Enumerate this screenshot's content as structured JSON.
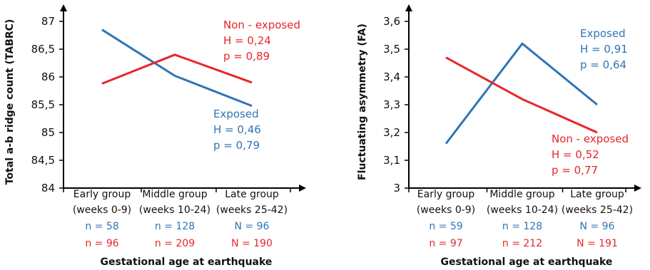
{
  "colors": {
    "exposed": "#2F75B5",
    "non_exposed": "#E8262A",
    "axis": "#000000"
  },
  "chart_data": [
    {
      "type": "line",
      "ylabel": "Total a-b ridge count (TABRC)",
      "xlabel": "Gestational age at earthquake",
      "ylim": [
        84,
        87
      ],
      "yticks": [
        "84",
        "84,5",
        "85",
        "85,5",
        "86",
        "86,5",
        "87"
      ],
      "categories": [
        [
          "Early group",
          "(weeks 0-9)"
        ],
        [
          "Middle group",
          "(weeks 10-24)"
        ],
        [
          "Late group",
          "(weeks 25-42)"
        ]
      ],
      "series": [
        {
          "name": "Exposed",
          "color": "#2F75B5",
          "values": [
            86.85,
            86.02,
            85.48
          ],
          "stats": [
            "H = 0,46",
            "p = 0,79"
          ],
          "n": [
            "n = 58",
            "n = 128",
            "N = 96"
          ]
        },
        {
          "name": "Non - exposed",
          "color": "#E8262A",
          "values": [
            85.88,
            86.4,
            85.9
          ],
          "stats": [
            "H = 0,24",
            "p = 0,89"
          ],
          "n": [
            "n = 96",
            "n = 209",
            "N = 190"
          ]
        }
      ]
    },
    {
      "type": "line",
      "ylabel": "Fluctuating asymmetry (FA)",
      "xlabel": "Gestational age at earthquake",
      "ylim": [
        3,
        3.6
      ],
      "yticks": [
        "3",
        "3,1",
        "3,2",
        "3,3",
        "3,4",
        "3,5",
        "3,6"
      ],
      "categories": [
        [
          "Early group",
          "(weeks 0-9)"
        ],
        [
          "Middle group",
          "(weeks 10-24)"
        ],
        [
          "Late group",
          "(weeks 25-42)"
        ]
      ],
      "series": [
        {
          "name": "Exposed",
          "color": "#2F75B5",
          "values": [
            3.16,
            3.52,
            3.3
          ],
          "stats": [
            "H = 0,91",
            "p = 0,64"
          ],
          "n": [
            "n = 59",
            "n = 128",
            "N = 96"
          ]
        },
        {
          "name": "Non - exposed",
          "color": "#E8262A",
          "values": [
            3.47,
            3.32,
            3.2
          ],
          "stats": [
            "H = 0,52",
            "p = 0,77"
          ],
          "n": [
            "n = 97",
            "n = 212",
            "N = 191"
          ]
        }
      ]
    }
  ]
}
